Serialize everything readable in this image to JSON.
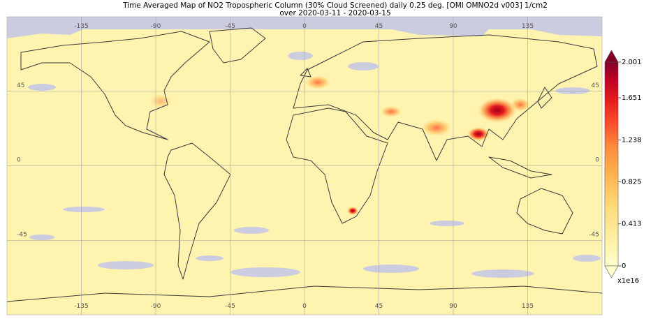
{
  "header": {
    "title": "Time Averaged Map of NO2 Tropospheric Column (30% Cloud Screened) daily 0.25 deg. [OMI OMNO2d v003] 1/cm2",
    "subtitle": "over 2020-03-11 - 2020-03-15"
  },
  "map": {
    "xlim": [
      -180,
      180
    ],
    "ylim": [
      -90,
      90
    ],
    "lon_ticks": [
      -135,
      -90,
      -45,
      0,
      45,
      90,
      135
    ],
    "lat_ticks": [
      45,
      0,
      -45
    ]
  },
  "colorbar": {
    "range": [
      0,
      2.001
    ],
    "ticks": [
      0,
      0.413,
      0.825,
      1.238,
      1.651,
      2.001
    ],
    "multiplier": "x1e16"
  }
}
